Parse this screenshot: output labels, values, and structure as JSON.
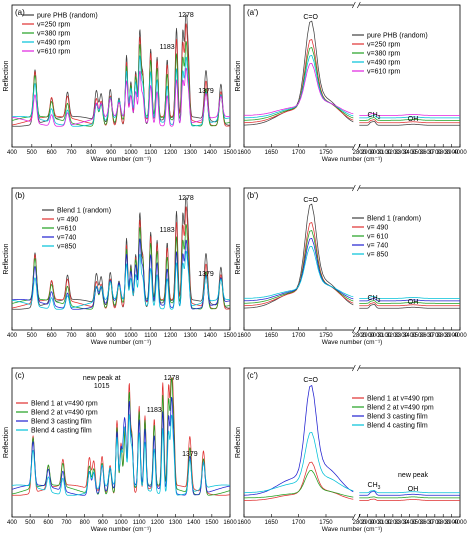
{
  "figure": {
    "xlabel": "Wave number (cm⁻¹)",
    "ylabel": "Reflection"
  },
  "chart_data": [
    {
      "id": "a",
      "panel_label": "(a)",
      "type": "line",
      "xlim": [
        400,
        1500
      ],
      "xticks": [
        400,
        500,
        600,
        700,
        800,
        900,
        1000,
        1100,
        1200,
        1300,
        1400,
        1500
      ],
      "series": [
        {
          "name": "pure PHB (random)",
          "color": "#404040"
        },
        {
          "name": "v=250 rpm",
          "color": "#e03030"
        },
        {
          "name": "v=380 rpm",
          "color": "#20a020"
        },
        {
          "name": "v=490 rpm",
          "color": "#00c0d8"
        },
        {
          "name": "v=610 rpm",
          "color": "#e020e0"
        }
      ],
      "peaks": [
        [
          516,
          0.55
        ],
        [
          600,
          0.22
        ],
        [
          680,
          0.25
        ],
        [
          826,
          0.3
        ],
        [
          850,
          0.28
        ],
        [
          896,
          0.35
        ],
        [
          940,
          0.28
        ],
        [
          978,
          0.72
        ],
        [
          1000,
          0.45
        ],
        [
          1024,
          0.55
        ],
        [
          1045,
          0.95
        ],
        [
          1060,
          0.5
        ],
        [
          1100,
          0.75
        ],
        [
          1132,
          0.65
        ],
        [
          1183,
          0.6
        ],
        [
          1230,
          0.9
        ],
        [
          1262,
          0.85
        ],
        [
          1278,
          1.0
        ],
        [
          1290,
          0.55
        ],
        [
          1379,
          0.5
        ],
        [
          1454,
          0.4
        ]
      ],
      "annotations": [
        {
          "text": "1278",
          "x": 1278
        },
        {
          "text": "1183",
          "x": 1183
        },
        {
          "text": "1379",
          "x": 1379
        }
      ]
    },
    {
      "id": "a2",
      "panel_label": "(a')",
      "type": "line",
      "xlim": [
        1600,
        4000
      ],
      "xbreak": [
        1800,
        2800
      ],
      "xticks": [
        1600,
        1650,
        1700,
        1750,
        2800,
        2900,
        3000,
        3100,
        3200,
        3300,
        3400,
        3500,
        3600,
        3700,
        3800,
        3900,
        4000
      ],
      "series": [
        {
          "name": "pure PHB (random)",
          "color": "#404040"
        },
        {
          "name": "v=250 rpm",
          "color": "#e03030"
        },
        {
          "name": "v=380 rpm",
          "color": "#20a020"
        },
        {
          "name": "v=490 rpm",
          "color": "#00c0d8"
        },
        {
          "name": "v=610 rpm",
          "color": "#e020e0"
        }
      ],
      "annotations": [
        {
          "text": "C=O",
          "x": 1722
        },
        {
          "text": "CH",
          "sub": "3",
          "x": 2975
        },
        {
          "text": "OH",
          "x": 3440
        }
      ]
    },
    {
      "id": "b",
      "panel_label": "(b)",
      "type": "line",
      "xlim": [
        400,
        1500
      ],
      "xticks": [
        400,
        500,
        600,
        700,
        800,
        900,
        1000,
        1100,
        1200,
        1300,
        1400,
        1500
      ],
      "series": [
        {
          "name": "Blend 1 (random)",
          "color": "#404040"
        },
        {
          "name": "v= 490",
          "color": "#e03030"
        },
        {
          "name": "v=610",
          "color": "#20a020"
        },
        {
          "name": "v=740",
          "color": "#2020d0"
        },
        {
          "name": "v=850",
          "color": "#00c0d8"
        }
      ],
      "annotations": [
        {
          "text": "1278",
          "x": 1278
        },
        {
          "text": "1183",
          "x": 1183
        },
        {
          "text": "1379",
          "x": 1379
        }
      ]
    },
    {
      "id": "b2",
      "panel_label": "(b')",
      "type": "line",
      "xlim": [
        1600,
        4000
      ],
      "xbreak": [
        1800,
        2800
      ],
      "xticks": [
        1600,
        1650,
        1700,
        1750,
        2800,
        2900,
        3000,
        3100,
        3200,
        3300,
        3400,
        3500,
        3600,
        3700,
        3800,
        3900,
        4000
      ],
      "series": [
        {
          "name": "Blend 1 (random)",
          "color": "#404040"
        },
        {
          "name": "v= 490",
          "color": "#e03030"
        },
        {
          "name": "v= 610",
          "color": "#20a020"
        },
        {
          "name": "v= 740",
          "color": "#2020d0"
        },
        {
          "name": "v= 850",
          "color": "#00c0d8"
        }
      ],
      "annotations": [
        {
          "text": "C=O",
          "x": 1722
        },
        {
          "text": "CH",
          "sub": "3",
          "x": 2975
        },
        {
          "text": "OH",
          "x": 3440
        }
      ]
    },
    {
      "id": "c",
      "panel_label": "(c)",
      "type": "line",
      "xlim": [
        400,
        1600
      ],
      "xticks": [
        400,
        500,
        600,
        700,
        800,
        900,
        1000,
        1100,
        1200,
        1300,
        1400,
        1500,
        1600
      ],
      "series": [
        {
          "name": "Blend 1 at v=490 rpm",
          "color": "#e03030"
        },
        {
          "name": "Blend 2 at v=490 rpm",
          "color": "#20a020"
        },
        {
          "name": "Blend 3 casting film",
          "color": "#2020d0"
        },
        {
          "name": "Blend 4 casting film",
          "color": "#00c0d8"
        }
      ],
      "annotations": [
        {
          "text": "new peak at",
          "x": 1015
        },
        {
          "text": "1015",
          "x": 1015
        },
        {
          "text": "1183",
          "x": 1183
        },
        {
          "text": "1278",
          "x": 1278
        },
        {
          "text": "1379",
          "x": 1379
        }
      ]
    },
    {
      "id": "c2",
      "panel_label": "(c')",
      "type": "line",
      "xlim": [
        1600,
        4000
      ],
      "xbreak": [
        1800,
        2800
      ],
      "xticks": [
        1600,
        1650,
        1700,
        1750,
        2800,
        2900,
        3000,
        3100,
        3200,
        3300,
        3400,
        3500,
        3600,
        3700,
        3800,
        3900,
        4000
      ],
      "series": [
        {
          "name": "Blend 1 at v=490 rpm",
          "color": "#e03030"
        },
        {
          "name": "Blend 2 at v=490 rpm",
          "color": "#20a020"
        },
        {
          "name": "Blend 3 casting film",
          "color": "#2020d0"
        },
        {
          "name": "Blend 4 casting film",
          "color": "#00c0d8"
        }
      ],
      "annotations": [
        {
          "text": "C=O",
          "x": 1722
        },
        {
          "text": "CH",
          "sub": "3",
          "x": 2975
        },
        {
          "text": "new peak",
          "x": 3440
        },
        {
          "text": "OH",
          "x": 3440
        }
      ]
    }
  ]
}
